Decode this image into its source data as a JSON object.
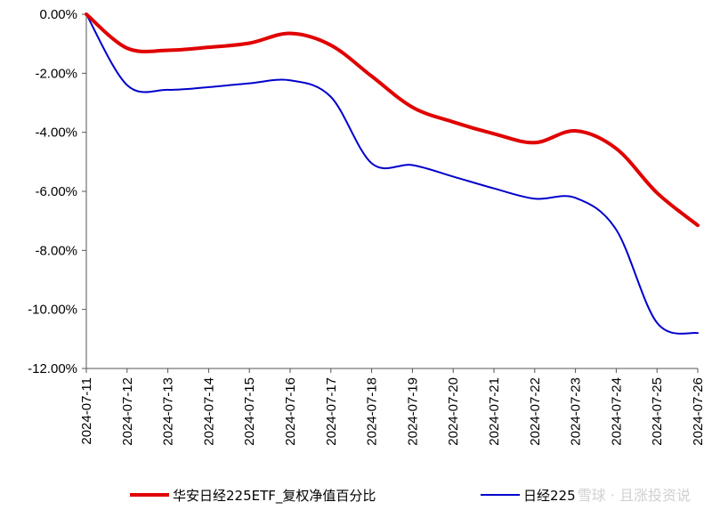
{
  "chart_data": {
    "type": "line",
    "title": "",
    "xlabel": "",
    "ylabel": "",
    "x": [
      "2024-07-11",
      "2024-07-12",
      "2024-07-13",
      "2024-07-14",
      "2024-07-15",
      "2024-07-16",
      "2024-07-17",
      "2024-07-18",
      "2024-07-19",
      "2024-07-20",
      "2024-07-21",
      "2024-07-22",
      "2024-07-23",
      "2024-07-24",
      "2024-07-25",
      "2024-07-26"
    ],
    "ylim": [
      -12,
      0
    ],
    "yticks": [
      0,
      -2,
      -4,
      -6,
      -8,
      -10,
      -12
    ],
    "ytick_labels": [
      "0.00%",
      "-2.00%",
      "-4.00%",
      "-6.00%",
      "-8.00%",
      "-10.00%",
      "-12.00%"
    ],
    "grid": false,
    "legend_position": "bottom",
    "series": [
      {
        "name": "华安日经225ETF_复权净值百分比",
        "color": "#e00000",
        "values": [
          0.0,
          -1.15,
          -1.22,
          -1.12,
          -0.98,
          -0.65,
          -1.05,
          -2.1,
          -3.15,
          -3.65,
          -4.05,
          -4.35,
          -3.95,
          -4.55,
          -6.05,
          -7.15
        ]
      },
      {
        "name": "日经225",
        "color": "#0000cc",
        "values": [
          0.0,
          -2.4,
          -2.56,
          -2.47,
          -2.34,
          -2.24,
          -2.8,
          -5.05,
          -5.11,
          -5.5,
          -5.9,
          -6.25,
          -6.22,
          -7.3,
          -10.45,
          -10.8
        ]
      }
    ]
  },
  "watermark": "雪球 · 且涨投资说"
}
